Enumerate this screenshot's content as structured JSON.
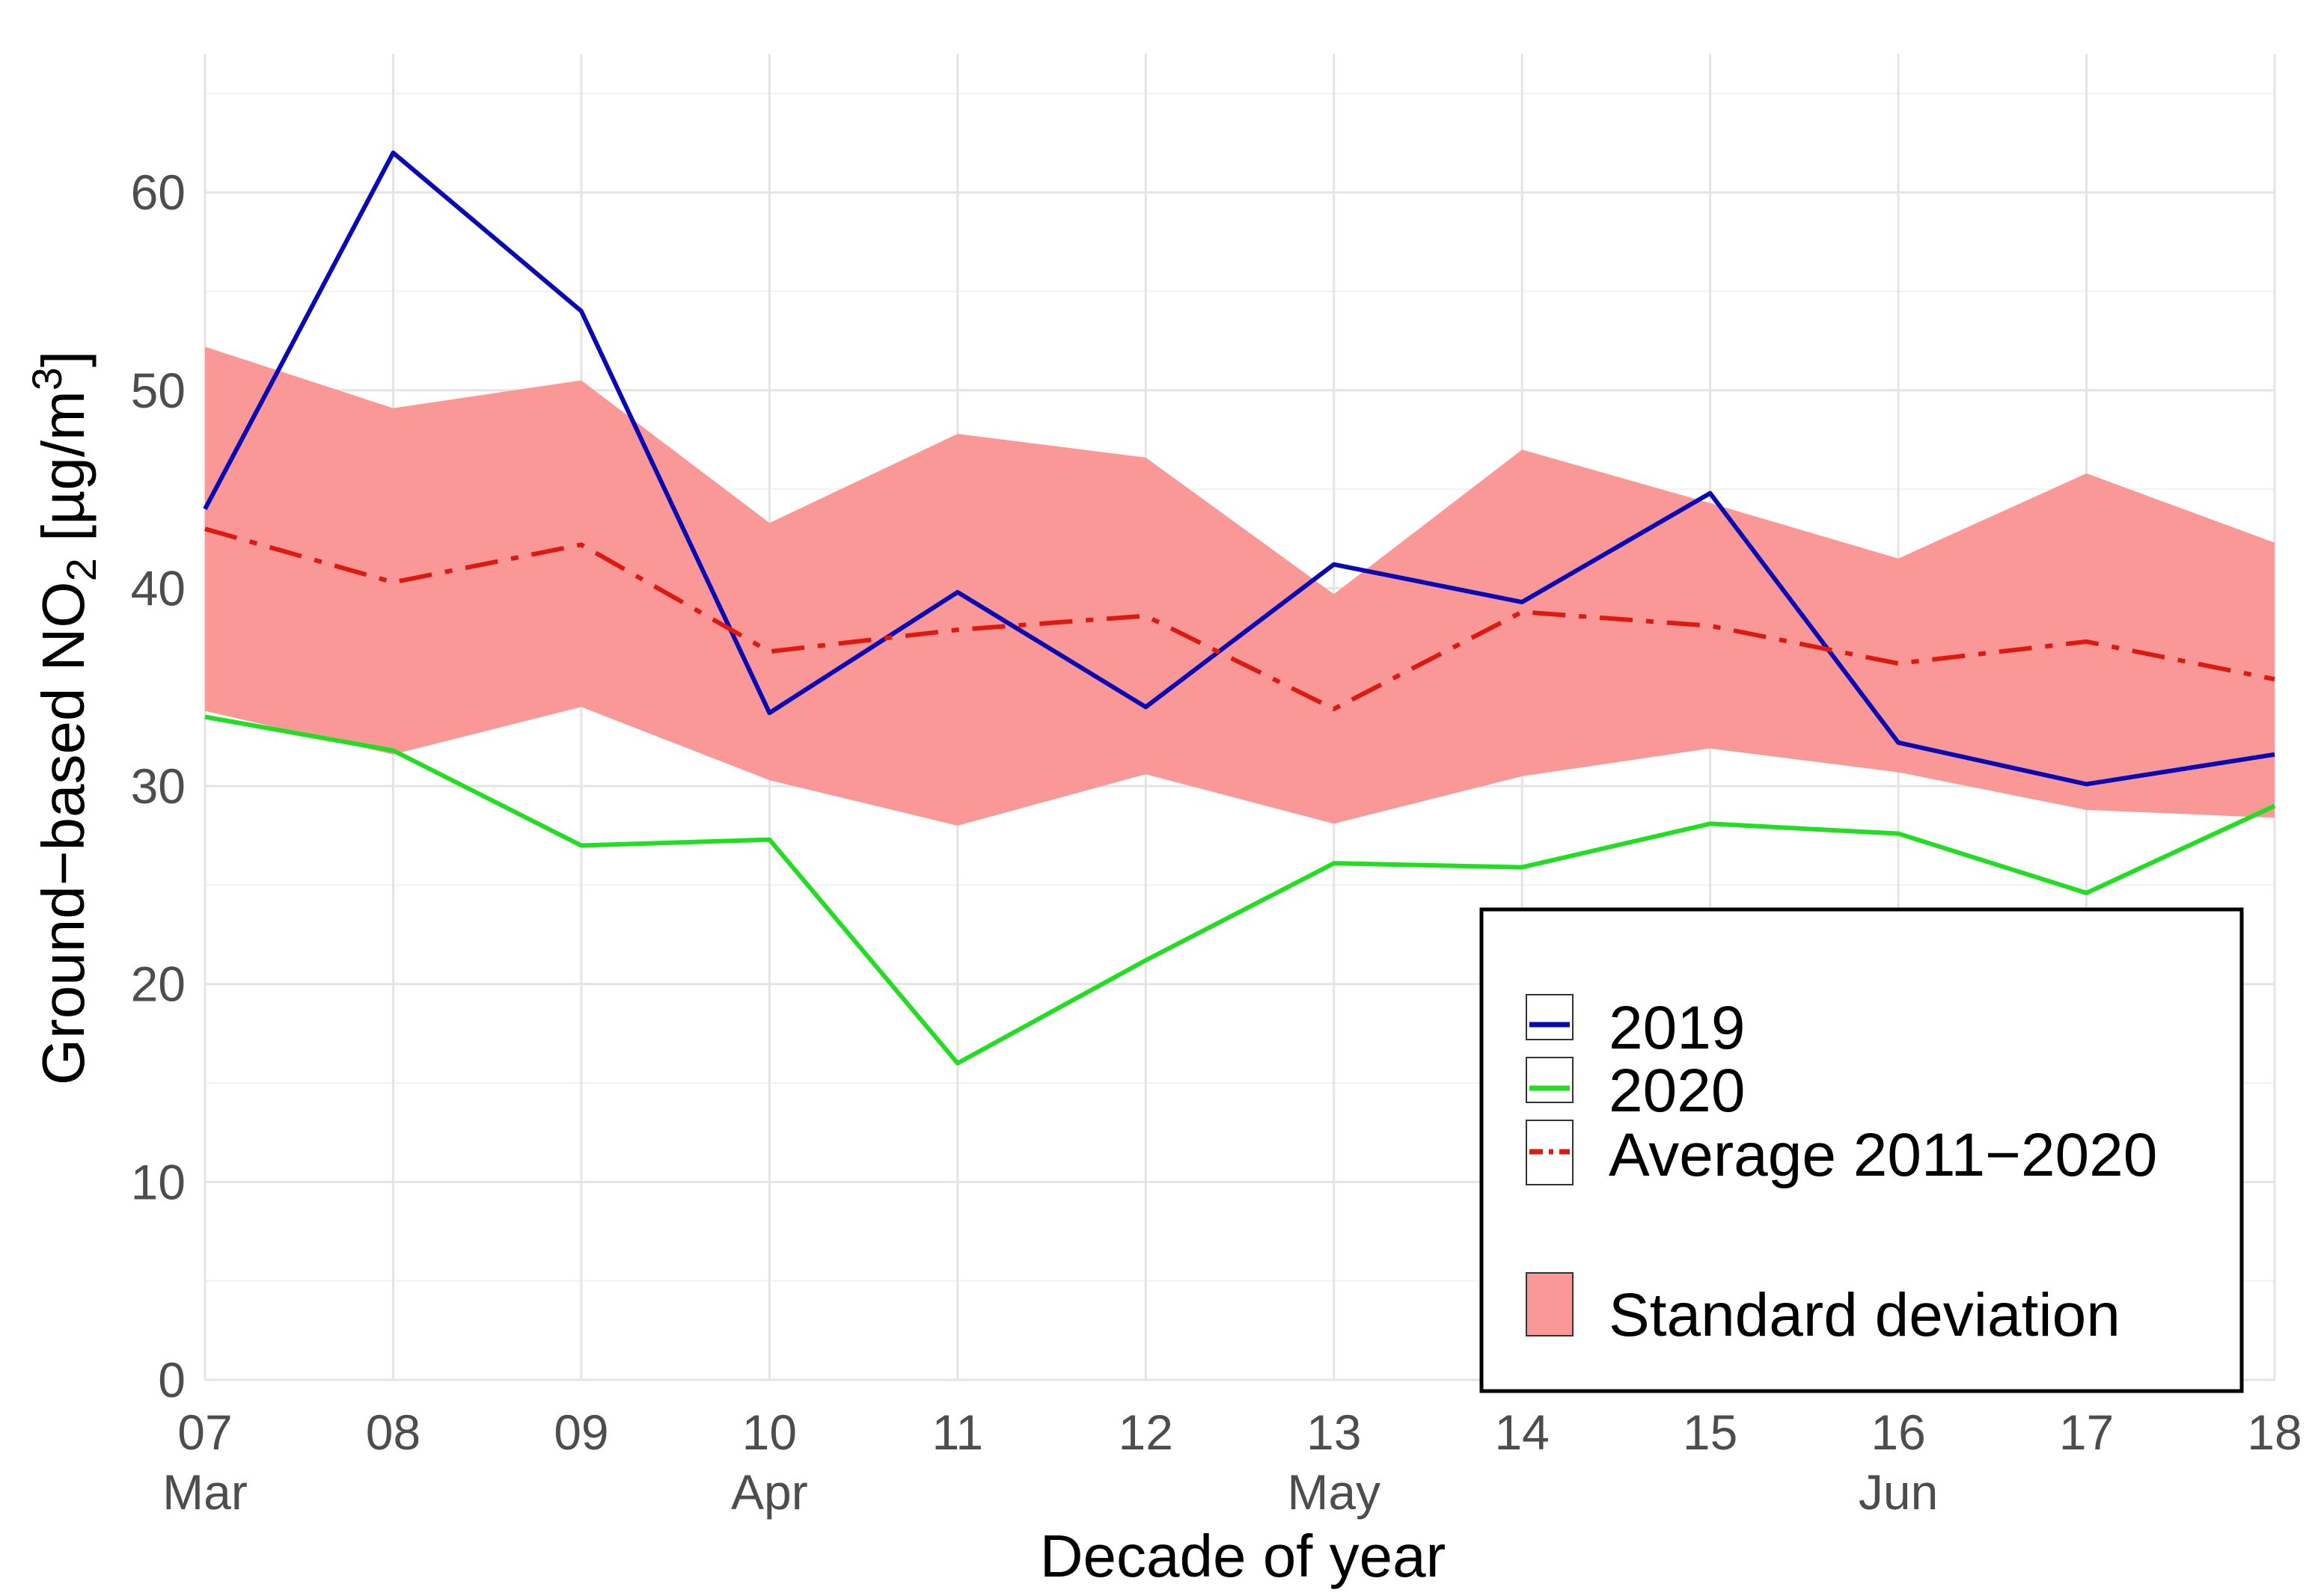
{
  "chart_data": {
    "type": "line",
    "title": "",
    "xlabel": "Decade of year",
    "ylabel": "Ground-based NO₂ [µg/m³]",
    "ylabel_parts": {
      "main": "Ground−based NO",
      "sub": "2",
      "unit": " [µg/m",
      "sup": "3",
      "close": "]"
    },
    "x_ticks": [
      "07",
      "08",
      "09",
      "10",
      "11",
      "12",
      "13",
      "14",
      "15",
      "16",
      "17",
      "18"
    ],
    "month_labels": [
      {
        "at": "07",
        "label": "Mar"
      },
      {
        "at": "10",
        "label": "Apr"
      },
      {
        "at": "13",
        "label": "May"
      },
      {
        "at": "16",
        "label": "Jun"
      }
    ],
    "y_ticks": [
      0,
      10,
      20,
      30,
      40,
      50,
      60
    ],
    "ylim": [
      0,
      67
    ],
    "grid": true,
    "series": [
      {
        "name": "2019",
        "color": "#0a0ab4",
        "dash": "solid",
        "values": [
          44.0,
          62.0,
          54.0,
          33.7,
          39.8,
          34.0,
          41.2,
          39.3,
          44.8,
          32.2,
          30.1,
          31.6
        ]
      },
      {
        "name": "2020",
        "color": "#22dd22",
        "dash": "solid",
        "values": [
          33.5,
          31.8,
          27.0,
          27.3,
          16.0,
          21.2,
          26.1,
          25.9,
          28.1,
          27.6,
          24.6,
          29.0
        ]
      },
      {
        "name": "Average 2011−2020",
        "color": "#dd1a10",
        "dash": "dashdot",
        "values": [
          43.0,
          40.3,
          42.2,
          36.8,
          37.9,
          38.6,
          33.9,
          38.8,
          38.1,
          36.2,
          37.3,
          35.4
        ]
      }
    ],
    "band": {
      "name": "Standard deviation",
      "color": "#fa9898",
      "upper": [
        52.2,
        49.1,
        50.5,
        43.3,
        47.8,
        46.6,
        39.7,
        47.0,
        44.3,
        41.5,
        45.8,
        42.3
      ],
      "lower": [
        33.8,
        31.6,
        34.0,
        30.3,
        28.0,
        30.6,
        28.1,
        30.5,
        31.9,
        30.7,
        28.8,
        28.4
      ]
    },
    "legend": {
      "position": "bottom-right",
      "items": [
        "2019",
        "2020",
        "Average 2011−2020"
      ],
      "fill_item": "Standard deviation"
    }
  }
}
